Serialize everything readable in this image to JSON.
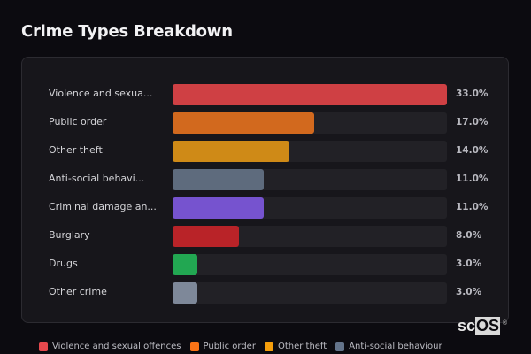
{
  "header": {
    "title": "Crime Types Breakdown"
  },
  "rows": [
    {
      "label": "Violence and sexua...",
      "value": 33.0,
      "pct": "33.0%",
      "color": "#cf4044"
    },
    {
      "label": "Public order",
      "value": 17.0,
      "pct": "17.0%",
      "color": "#d2691e"
    },
    {
      "label": "Other theft",
      "value": 14.0,
      "pct": "14.0%",
      "color": "#cf8a17"
    },
    {
      "label": "Anti-social behavi...",
      "value": 11.0,
      "pct": "11.0%",
      "color": "#5e6b7d"
    },
    {
      "label": "Criminal damage an...",
      "value": 11.0,
      "pct": "11.0%",
      "color": "#7653cf"
    },
    {
      "label": "Burglary",
      "value": 8.0,
      "pct": "8.0%",
      "color": "#b92328"
    },
    {
      "label": "Drugs",
      "value": 3.0,
      "pct": "3.0%",
      "color": "#22a752"
    },
    {
      "label": "Other crime",
      "value": 3.0,
      "pct": "3.0%",
      "color": "#7e8899"
    }
  ],
  "legend": [
    {
      "label": "Violence and sexual offences",
      "color": "#e5484d"
    },
    {
      "label": "Public order",
      "color": "#f97316"
    },
    {
      "label": "Other theft",
      "color": "#f59e0b"
    },
    {
      "label": "Anti-social behaviour",
      "color": "#64748b"
    }
  ],
  "logo": {
    "text_a": "sc",
    "text_b": "OS",
    "reg": "®"
  },
  "chart_data": {
    "type": "bar",
    "orientation": "horizontal",
    "title": "Crime Types Breakdown",
    "categories": [
      "Violence and sexual offences",
      "Public order",
      "Other theft",
      "Anti-social behaviour",
      "Criminal damage and arson",
      "Burglary",
      "Drugs",
      "Other crime"
    ],
    "category_labels_displayed": [
      "Violence and sexua...",
      "Public order",
      "Other theft",
      "Anti-social behavi...",
      "Criminal damage an...",
      "Burglary",
      "Drugs",
      "Other crime"
    ],
    "values": [
      33.0,
      17.0,
      14.0,
      11.0,
      11.0,
      8.0,
      3.0,
      3.0
    ],
    "value_labels": [
      "33.0%",
      "17.0%",
      "14.0%",
      "11.0%",
      "11.0%",
      "8.0%",
      "3.0%",
      "3.0%"
    ],
    "unit": "%",
    "xlabel": "",
    "ylabel": "",
    "xlim": [
      0,
      33
    ],
    "grid": false,
    "legend_position": "bottom",
    "legend_entries": [
      "Violence and sexual offences",
      "Public order",
      "Other theft",
      "Anti-social behaviour"
    ]
  }
}
